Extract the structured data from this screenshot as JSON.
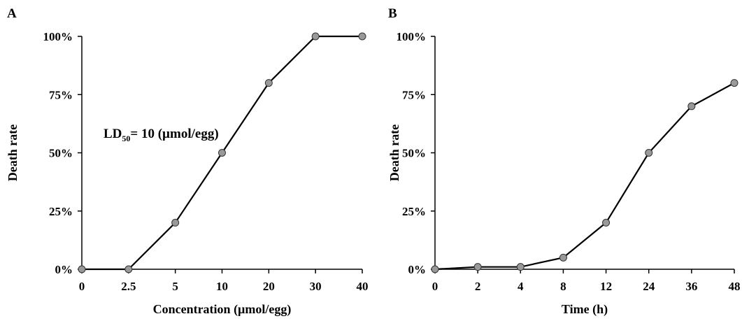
{
  "chart_data": [
    {
      "type": "line",
      "panel_label": "A",
      "categories": [
        "0",
        "2.5",
        "5",
        "10",
        "20",
        "30",
        "40"
      ],
      "series": [
        {
          "values": [
            0,
            0,
            20,
            50,
            80,
            100,
            100
          ]
        }
      ],
      "xlabel": "Concentration (µmol/egg)",
      "ylabel": "Death rate",
      "y_ticks": [
        "0%",
        "25%",
        "50%",
        "75%",
        "100%"
      ],
      "ylim": [
        0,
        100
      ],
      "annotation": {
        "prefix": "LD",
        "subscript": "50",
        "text": "= 10 (µmol/egg)"
      },
      "grid": false,
      "marker_color": "#999999",
      "line_color": "#000000"
    },
    {
      "type": "line",
      "panel_label": "B",
      "categories": [
        "0",
        "2",
        "4",
        "8",
        "12",
        "24",
        "36",
        "48"
      ],
      "series": [
        {
          "values": [
            0,
            1,
            1,
            5,
            20,
            50,
            70,
            80
          ]
        }
      ],
      "xlabel": "Time (h)",
      "ylabel": "Death rate",
      "y_ticks": [
        "0%",
        "25%",
        "50%",
        "75%",
        "100%"
      ],
      "ylim": [
        0,
        100
      ],
      "grid": false,
      "marker_color": "#999999",
      "line_color": "#000000"
    }
  ]
}
